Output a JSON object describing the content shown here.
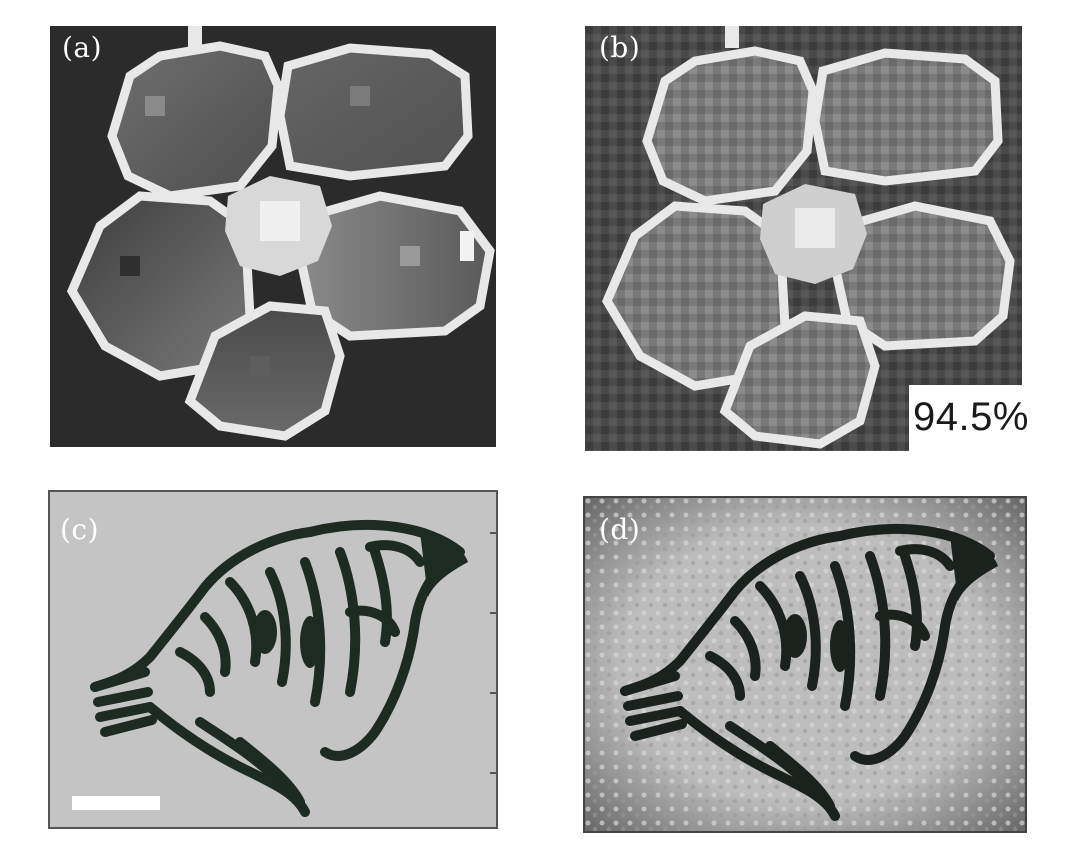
{
  "panels": {
    "a": {
      "label": "(a)"
    },
    "b": {
      "label": "(b)",
      "annotation": "94.5%"
    },
    "c": {
      "label": "(c)"
    },
    "d": {
      "label": "(d)"
    }
  },
  "colors": {
    "panel_a_background": "#2b2b2b",
    "panel_b_background": "#4a4a4a",
    "panel_c_background": "#c4c4c4",
    "panel_d_background": "#b9b9b9",
    "cell_outline": "#e8e8e8",
    "tiger_ink": "#1d2b22",
    "scale_bar": "#ffffff"
  },
  "figure": {
    "subject_top": "five-lobed pixelated flower/cell pattern",
    "subject_bottom": "tiger head line drawing"
  }
}
